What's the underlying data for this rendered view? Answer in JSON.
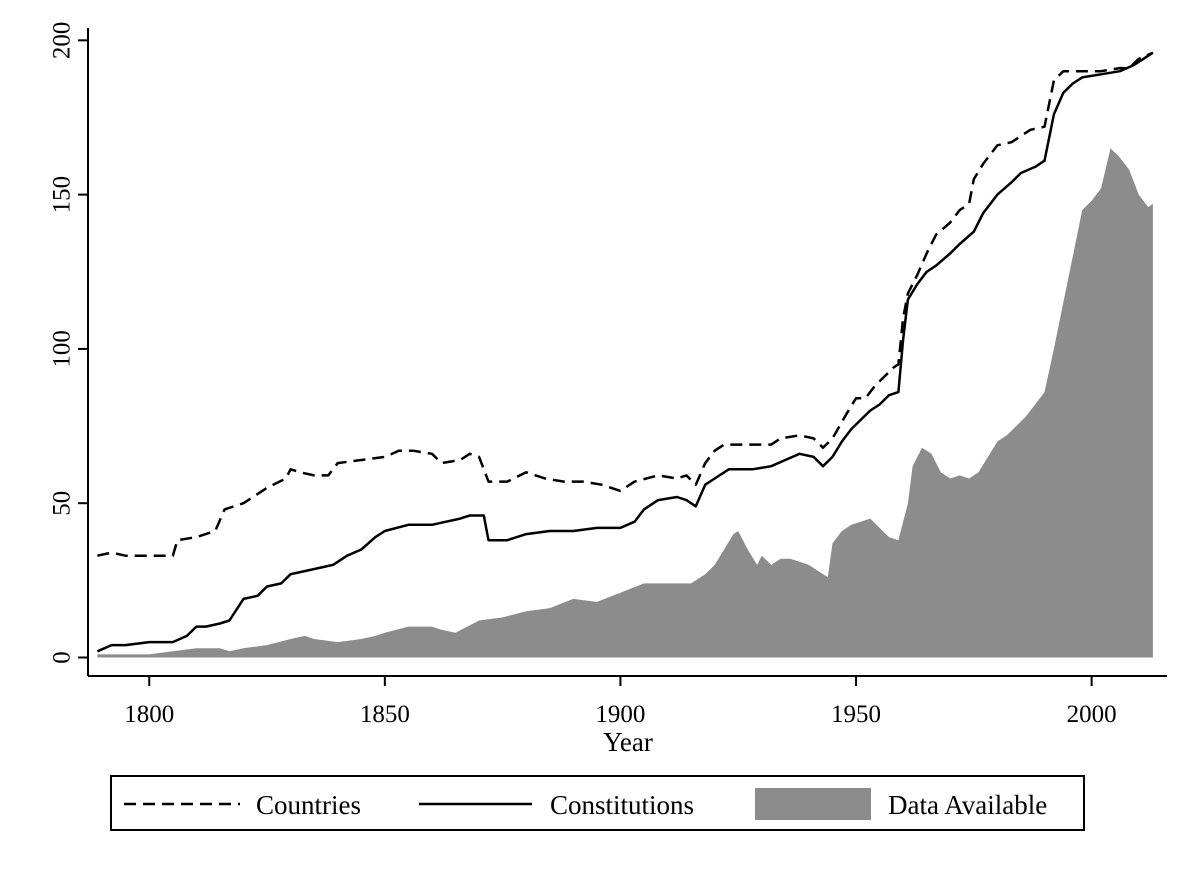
{
  "chart_data": {
    "type": "line",
    "xlabel": "Year",
    "ylabel": "",
    "xlim": [
      1787,
      2016
    ],
    "ylim": [
      -6,
      204
    ],
    "x_ticks": [
      1800,
      1850,
      1900,
      1950,
      2000
    ],
    "y_ticks": [
      0,
      50,
      100,
      150,
      200
    ],
    "grid": false,
    "legend_position": "bottom",
    "colors": {
      "lines": "#000000",
      "area": "#8c8c8c",
      "frame": "#000000"
    },
    "series": [
      {
        "name": "Countries",
        "style": "dashed",
        "points": [
          [
            1789,
            33
          ],
          [
            1792,
            34
          ],
          [
            1795,
            33
          ],
          [
            1800,
            33
          ],
          [
            1805,
            33
          ],
          [
            1806,
            38
          ],
          [
            1810,
            39
          ],
          [
            1814,
            41
          ],
          [
            1816,
            48
          ],
          [
            1820,
            50
          ],
          [
            1825,
            55
          ],
          [
            1829,
            58
          ],
          [
            1830,
            61
          ],
          [
            1832,
            60
          ],
          [
            1835,
            59
          ],
          [
            1838,
            59
          ],
          [
            1840,
            63
          ],
          [
            1845,
            64
          ],
          [
            1850,
            65
          ],
          [
            1853,
            67
          ],
          [
            1856,
            67
          ],
          [
            1860,
            66
          ],
          [
            1862,
            63
          ],
          [
            1866,
            64
          ],
          [
            1868,
            66
          ],
          [
            1870,
            65
          ],
          [
            1872,
            57
          ],
          [
            1876,
            57
          ],
          [
            1880,
            60
          ],
          [
            1884,
            58
          ],
          [
            1888,
            57
          ],
          [
            1892,
            57
          ],
          [
            1896,
            56
          ],
          [
            1900,
            54
          ],
          [
            1903,
            57
          ],
          [
            1908,
            59
          ],
          [
            1912,
            58
          ],
          [
            1914,
            59
          ],
          [
            1916,
            56
          ],
          [
            1918,
            63
          ],
          [
            1920,
            67
          ],
          [
            1922,
            69
          ],
          [
            1928,
            69
          ],
          [
            1932,
            69
          ],
          [
            1934,
            71
          ],
          [
            1938,
            72
          ],
          [
            1941,
            71
          ],
          [
            1943,
            68
          ],
          [
            1945,
            71
          ],
          [
            1948,
            79
          ],
          [
            1950,
            84
          ],
          [
            1952,
            84
          ],
          [
            1954,
            88
          ],
          [
            1956,
            91
          ],
          [
            1958,
            94
          ],
          [
            1959,
            95
          ],
          [
            1960,
            110
          ],
          [
            1961,
            118
          ],
          [
            1963,
            124
          ],
          [
            1965,
            131
          ],
          [
            1967,
            137
          ],
          [
            1970,
            141
          ],
          [
            1972,
            145
          ],
          [
            1974,
            147
          ],
          [
            1975,
            155
          ],
          [
            1977,
            160
          ],
          [
            1980,
            166
          ],
          [
            1983,
            167
          ],
          [
            1985,
            169
          ],
          [
            1987,
            171
          ],
          [
            1990,
            172
          ],
          [
            1992,
            187
          ],
          [
            1994,
            190
          ],
          [
            1998,
            190
          ],
          [
            2002,
            190
          ],
          [
            2006,
            191
          ],
          [
            2008,
            191
          ],
          [
            2010,
            194
          ],
          [
            2013,
            196
          ]
        ]
      },
      {
        "name": "Constitutions",
        "style": "solid",
        "points": [
          [
            1789,
            2
          ],
          [
            1792,
            4
          ],
          [
            1795,
            4
          ],
          [
            1800,
            5
          ],
          [
            1805,
            5
          ],
          [
            1808,
            7
          ],
          [
            1810,
            10
          ],
          [
            1812,
            10
          ],
          [
            1815,
            11
          ],
          [
            1817,
            12
          ],
          [
            1820,
            19
          ],
          [
            1823,
            20
          ],
          [
            1825,
            23
          ],
          [
            1828,
            24
          ],
          [
            1830,
            27
          ],
          [
            1833,
            28
          ],
          [
            1836,
            29
          ],
          [
            1839,
            30
          ],
          [
            1842,
            33
          ],
          [
            1845,
            35
          ],
          [
            1848,
            39
          ],
          [
            1850,
            41
          ],
          [
            1855,
            43
          ],
          [
            1860,
            43
          ],
          [
            1863,
            44
          ],
          [
            1866,
            45
          ],
          [
            1868,
            46
          ],
          [
            1871,
            46
          ],
          [
            1872,
            38
          ],
          [
            1876,
            38
          ],
          [
            1880,
            40
          ],
          [
            1885,
            41
          ],
          [
            1890,
            41
          ],
          [
            1895,
            42
          ],
          [
            1900,
            42
          ],
          [
            1903,
            44
          ],
          [
            1905,
            48
          ],
          [
            1908,
            51
          ],
          [
            1912,
            52
          ],
          [
            1914,
            51
          ],
          [
            1916,
            49
          ],
          [
            1918,
            56
          ],
          [
            1920,
            58
          ],
          [
            1923,
            61
          ],
          [
            1928,
            61
          ],
          [
            1932,
            62
          ],
          [
            1935,
            64
          ],
          [
            1938,
            66
          ],
          [
            1941,
            65
          ],
          [
            1943,
            62
          ],
          [
            1945,
            65
          ],
          [
            1947,
            70
          ],
          [
            1949,
            74
          ],
          [
            1951,
            77
          ],
          [
            1953,
            80
          ],
          [
            1955,
            82
          ],
          [
            1957,
            85
          ],
          [
            1959,
            86
          ],
          [
            1960,
            103
          ],
          [
            1961,
            116
          ],
          [
            1963,
            121
          ],
          [
            1965,
            125
          ],
          [
            1967,
            127
          ],
          [
            1970,
            131
          ],
          [
            1972,
            134
          ],
          [
            1975,
            138
          ],
          [
            1977,
            144
          ],
          [
            1980,
            150
          ],
          [
            1983,
            154
          ],
          [
            1985,
            157
          ],
          [
            1988,
            159
          ],
          [
            1990,
            161
          ],
          [
            1992,
            176
          ],
          [
            1994,
            183
          ],
          [
            1996,
            186
          ],
          [
            1998,
            188
          ],
          [
            2002,
            189
          ],
          [
            2006,
            190
          ],
          [
            2009,
            192
          ],
          [
            2013,
            196
          ]
        ]
      },
      {
        "name": "Data Available",
        "style": "area",
        "points": [
          [
            1789,
            1
          ],
          [
            1795,
            1
          ],
          [
            1800,
            1
          ],
          [
            1805,
            2
          ],
          [
            1810,
            3
          ],
          [
            1815,
            3
          ],
          [
            1817,
            2
          ],
          [
            1820,
            3
          ],
          [
            1825,
            4
          ],
          [
            1830,
            6
          ],
          [
            1833,
            7
          ],
          [
            1835,
            6
          ],
          [
            1840,
            5
          ],
          [
            1845,
            6
          ],
          [
            1848,
            7
          ],
          [
            1850,
            8
          ],
          [
            1855,
            10
          ],
          [
            1860,
            10
          ],
          [
            1862,
            9
          ],
          [
            1865,
            8
          ],
          [
            1870,
            12
          ],
          [
            1875,
            13
          ],
          [
            1880,
            15
          ],
          [
            1885,
            16
          ],
          [
            1890,
            19
          ],
          [
            1895,
            18
          ],
          [
            1900,
            21
          ],
          [
            1905,
            24
          ],
          [
            1910,
            24
          ],
          [
            1915,
            24
          ],
          [
            1918,
            27
          ],
          [
            1920,
            30
          ],
          [
            1922,
            35
          ],
          [
            1924,
            40
          ],
          [
            1925,
            41
          ],
          [
            1927,
            35
          ],
          [
            1929,
            30
          ],
          [
            1930,
            33
          ],
          [
            1932,
            30
          ],
          [
            1934,
            32
          ],
          [
            1936,
            32
          ],
          [
            1938,
            31
          ],
          [
            1940,
            30
          ],
          [
            1942,
            28
          ],
          [
            1944,
            26
          ],
          [
            1945,
            37
          ],
          [
            1947,
            41
          ],
          [
            1949,
            43
          ],
          [
            1951,
            44
          ],
          [
            1953,
            45
          ],
          [
            1955,
            42
          ],
          [
            1957,
            39
          ],
          [
            1959,
            38
          ],
          [
            1961,
            50
          ],
          [
            1962,
            62
          ],
          [
            1964,
            68
          ],
          [
            1966,
            66
          ],
          [
            1968,
            60
          ],
          [
            1970,
            58
          ],
          [
            1972,
            59
          ],
          [
            1974,
            58
          ],
          [
            1976,
            60
          ],
          [
            1978,
            65
          ],
          [
            1980,
            70
          ],
          [
            1982,
            72
          ],
          [
            1984,
            75
          ],
          [
            1986,
            78
          ],
          [
            1988,
            82
          ],
          [
            1990,
            86
          ],
          [
            1992,
            100
          ],
          [
            1994,
            115
          ],
          [
            1996,
            130
          ],
          [
            1998,
            145
          ],
          [
            2000,
            148
          ],
          [
            2002,
            152
          ],
          [
            2004,
            165
          ],
          [
            2006,
            162
          ],
          [
            2008,
            158
          ],
          [
            2010,
            150
          ],
          [
            2012,
            146
          ],
          [
            2013,
            147
          ]
        ]
      }
    ]
  },
  "axes": {
    "x_tick_labels": [
      "1800",
      "1850",
      "1900",
      "1950",
      "2000"
    ],
    "y_tick_labels": [
      "0",
      "50",
      "100",
      "150",
      "200"
    ],
    "x_title": "Year"
  },
  "legend": {
    "countries": "Countries",
    "constitutions": "Constitutions",
    "data_available": "Data Available"
  }
}
